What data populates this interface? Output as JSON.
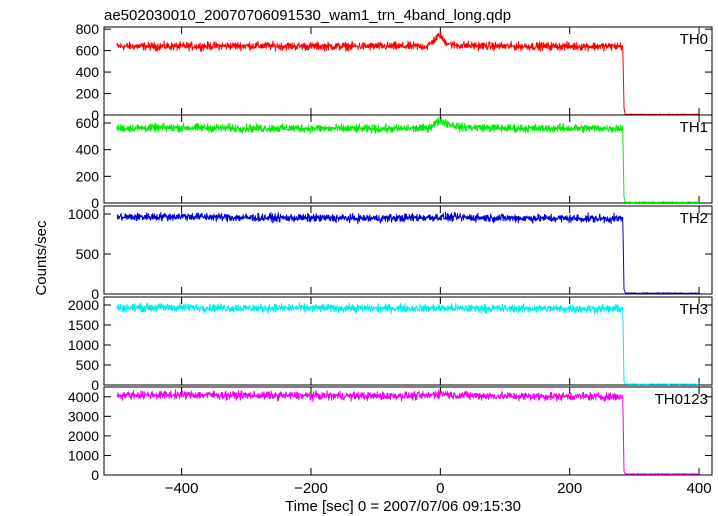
{
  "title": "ae502030010_20070706091530_wam1_trn_4band_long.qdp",
  "xlabel": "Time [sec] 0 = 2007/07/06 09:15:30",
  "ylabel": "Counts/sec",
  "chart_data": {
    "type": "line",
    "xlim": [
      -520,
      420
    ],
    "x_ticks": [
      -400,
      -200,
      0,
      200,
      400
    ],
    "x_tick_labels": [
      "−400",
      "−200",
      "0",
      "200",
      "400"
    ],
    "panels": [
      {
        "name": "TH0",
        "color": "#ff0000",
        "ylim": [
          0,
          820
        ],
        "y_ticks": [
          0,
          200,
          400,
          600,
          800
        ],
        "y_tick_labels": [
          "0",
          "200",
          "400",
          "600",
          "800"
        ],
        "points": [
          [
            -500,
            640
          ],
          [
            -400,
            640
          ],
          [
            -300,
            645
          ],
          [
            -200,
            640
          ],
          [
            -100,
            640
          ],
          [
            -20,
            640
          ],
          [
            0,
            750
          ],
          [
            5,
            690
          ],
          [
            20,
            650
          ],
          [
            100,
            640
          ],
          [
            200,
            640
          ],
          [
            282,
            640
          ],
          [
            284,
            60
          ],
          [
            286,
            5
          ],
          [
            300,
            5
          ],
          [
            400,
            5
          ]
        ]
      },
      {
        "name": "TH1",
        "color": "#00ee00",
        "ylim": [
          0,
          660
        ],
        "y_ticks": [
          0,
          200,
          400,
          600
        ],
        "y_tick_labels": [
          "0",
          "200",
          "400",
          "600"
        ],
        "points": [
          [
            -500,
            560
          ],
          [
            -400,
            565
          ],
          [
            -300,
            560
          ],
          [
            -200,
            560
          ],
          [
            -100,
            555
          ],
          [
            -20,
            560
          ],
          [
            0,
            620
          ],
          [
            10,
            600
          ],
          [
            30,
            570
          ],
          [
            100,
            560
          ],
          [
            200,
            560
          ],
          [
            282,
            560
          ],
          [
            284,
            40
          ],
          [
            286,
            5
          ],
          [
            300,
            5
          ],
          [
            400,
            5
          ]
        ]
      },
      {
        "name": "TH2",
        "color": "#0000dd",
        "ylim": [
          0,
          1100
        ],
        "y_ticks": [
          0,
          500,
          1000
        ],
        "y_tick_labels": [
          "0",
          "500",
          "1000"
        ],
        "points": [
          [
            -500,
            960
          ],
          [
            -400,
            970
          ],
          [
            -300,
            955
          ],
          [
            -200,
            950
          ],
          [
            -100,
            945
          ],
          [
            0,
            960
          ],
          [
            100,
            950
          ],
          [
            200,
            945
          ],
          [
            282,
            940
          ],
          [
            284,
            60
          ],
          [
            286,
            10
          ],
          [
            300,
            10
          ],
          [
            400,
            10
          ]
        ]
      },
      {
        "name": "TH3",
        "color": "#00eeee",
        "ylim": [
          0,
          2200
        ],
        "y_ticks": [
          0,
          500,
          1000,
          1500,
          2000
        ],
        "y_tick_labels": [
          "0",
          "500",
          "1000",
          "1500",
          "2000"
        ],
        "points": [
          [
            -500,
            1930
          ],
          [
            -400,
            1940
          ],
          [
            -300,
            1920
          ],
          [
            -200,
            1925
          ],
          [
            -100,
            1915
          ],
          [
            0,
            1920
          ],
          [
            100,
            1910
          ],
          [
            200,
            1910
          ],
          [
            282,
            1900
          ],
          [
            284,
            100
          ],
          [
            286,
            20
          ],
          [
            300,
            20
          ],
          [
            400,
            20
          ]
        ]
      },
      {
        "name": "TH0123",
        "color": "#ee00ee",
        "ylim": [
          0,
          4500
        ],
        "y_ticks": [
          0,
          1000,
          2000,
          3000,
          4000
        ],
        "y_tick_labels": [
          "0",
          "1000",
          "2000",
          "3000",
          "4000"
        ],
        "points": [
          [
            -500,
            4080
          ],
          [
            -400,
            4100
          ],
          [
            -300,
            4070
          ],
          [
            -200,
            4050
          ],
          [
            -100,
            4040
          ],
          [
            -20,
            4050
          ],
          [
            0,
            4180
          ],
          [
            20,
            4080
          ],
          [
            100,
            4030
          ],
          [
            200,
            4020
          ],
          [
            282,
            4000
          ],
          [
            284,
            200
          ],
          [
            286,
            50
          ],
          [
            300,
            50
          ],
          [
            400,
            50
          ]
        ]
      }
    ]
  }
}
